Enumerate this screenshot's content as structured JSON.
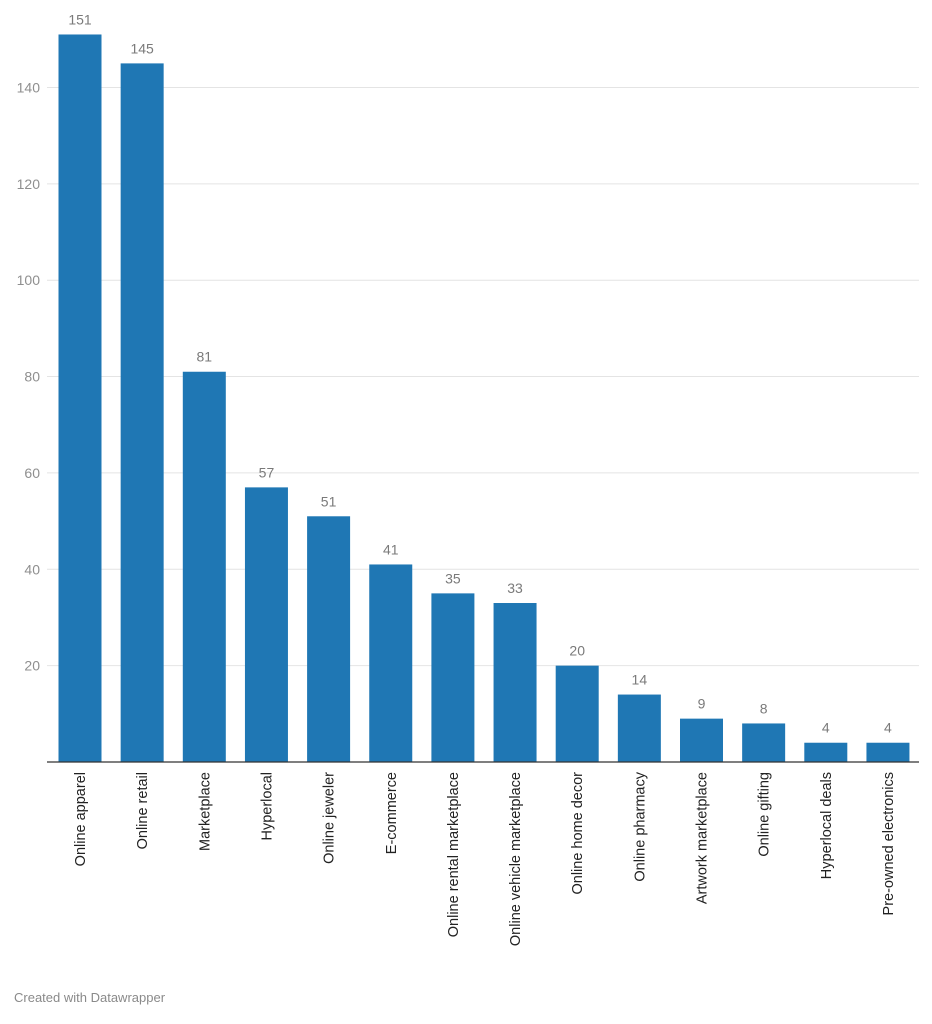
{
  "chart_data": {
    "type": "bar",
    "categories": [
      "Online apparel",
      "Online retail",
      "Marketplace",
      "Hyperlocal",
      "Online jeweler",
      "E-commerce",
      "Online rental marketplace",
      "Online vehicle marketplace",
      "Online home decor",
      "Online pharmacy",
      "Artwork marketplace",
      "Online gifting",
      "Hyperlocal deals",
      "Pre-owned electronics"
    ],
    "values": [
      151,
      145,
      81,
      57,
      51,
      41,
      35,
      33,
      20,
      14,
      9,
      8,
      4,
      4
    ],
    "yticks": [
      20,
      40,
      60,
      80,
      100,
      120,
      140
    ],
    "ylim": [
      0,
      155
    ],
    "grid": true,
    "bar_color": "#1f77b4",
    "data_labels": true
  },
  "footer": {
    "credit": "Created with Datawrapper"
  }
}
